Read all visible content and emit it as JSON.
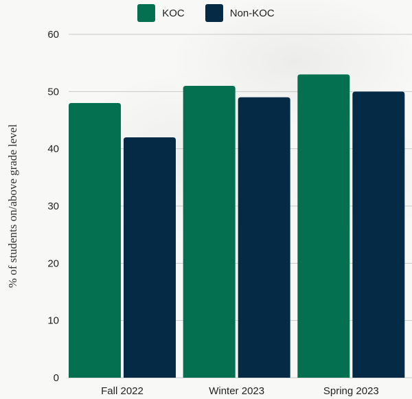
{
  "chart_data": {
    "type": "bar",
    "categories": [
      "Fall 2022",
      "Winter 2023",
      "Spring 2023"
    ],
    "series": [
      {
        "name": "KOC",
        "values": [
          48,
          51,
          53
        ],
        "color": "#05704f"
      },
      {
        "name": "Non-KOC",
        "values": [
          42,
          49,
          50
        ],
        "color": "#052a45"
      }
    ],
    "ylabel": "% of students on/above grade level",
    "xlabel": "",
    "ylim": [
      0,
      60
    ],
    "yticks": [
      0,
      10,
      20,
      30,
      40,
      50,
      60
    ],
    "legend_position": "top-center",
    "grid": "horizontal"
  }
}
